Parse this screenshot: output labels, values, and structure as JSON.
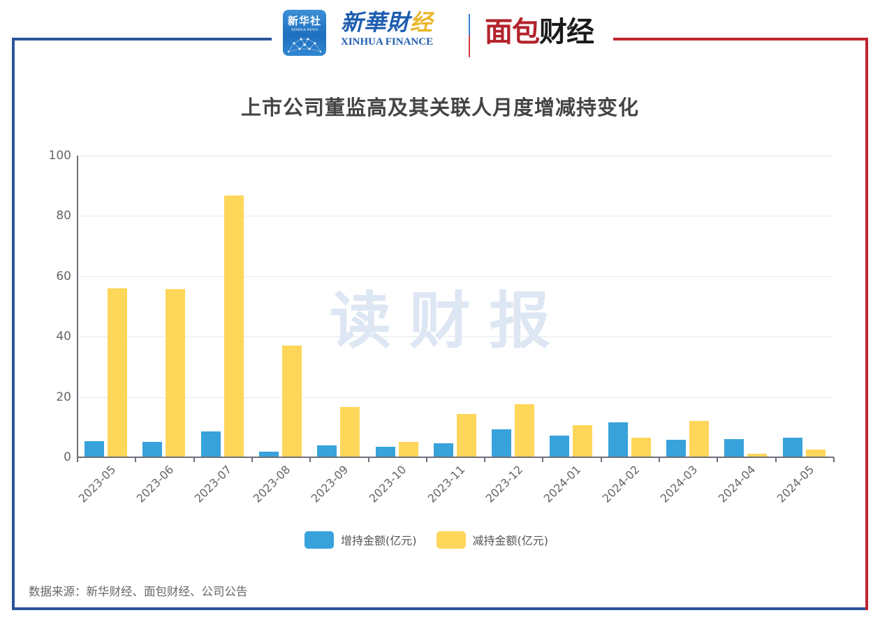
{
  "header": {
    "xinhua_news_logo": {
      "cn": "新华社",
      "en": "XINHUA NEWS"
    },
    "xinhua_finance_logo": {
      "cn_main": "新華財",
      "cn_accent": "经",
      "en": "XINHUA FINANCE"
    },
    "mianbao_logo": {
      "red_part": "面包",
      "black_part": "财经",
      "registered": "®"
    }
  },
  "watermark": "读财报",
  "source_note": "数据来源：新华财经、面包财经、公司公告",
  "colors": {
    "increase": "#38a2db",
    "decrease": "#fed65a",
    "frame_blue": "#2a5599",
    "frame_red": "#c0242f",
    "title": "#444444"
  },
  "chart_data": {
    "type": "bar",
    "title": "上市公司董监高及其关联人月度增减持变化",
    "xlabel": "",
    "ylabel": "",
    "ylim": [
      0,
      100
    ],
    "yticks": [
      0,
      20,
      40,
      60,
      80,
      100
    ],
    "grid": true,
    "legend_position": "bottom",
    "categories": [
      "2023-05",
      "2023-06",
      "2023-07",
      "2023-08",
      "2023-09",
      "2023-10",
      "2023-11",
      "2023-12",
      "2024-01",
      "2024-02",
      "2024-03",
      "2024-04",
      "2024-05"
    ],
    "series": [
      {
        "name": "增持金额(亿元)",
        "color": "#38a2db",
        "values": [
          5.2,
          4.9,
          8.3,
          1.7,
          3.6,
          3.3,
          4.5,
          9.0,
          7.0,
          11.4,
          5.5,
          5.9,
          6.3
        ]
      },
      {
        "name": "减持金额(亿元)",
        "color": "#fed65a",
        "values": [
          55.7,
          55.6,
          86.5,
          36.7,
          16.5,
          4.9,
          14.2,
          17.3,
          10.4,
          6.2,
          11.7,
          0.9,
          2.4
        ]
      }
    ]
  }
}
